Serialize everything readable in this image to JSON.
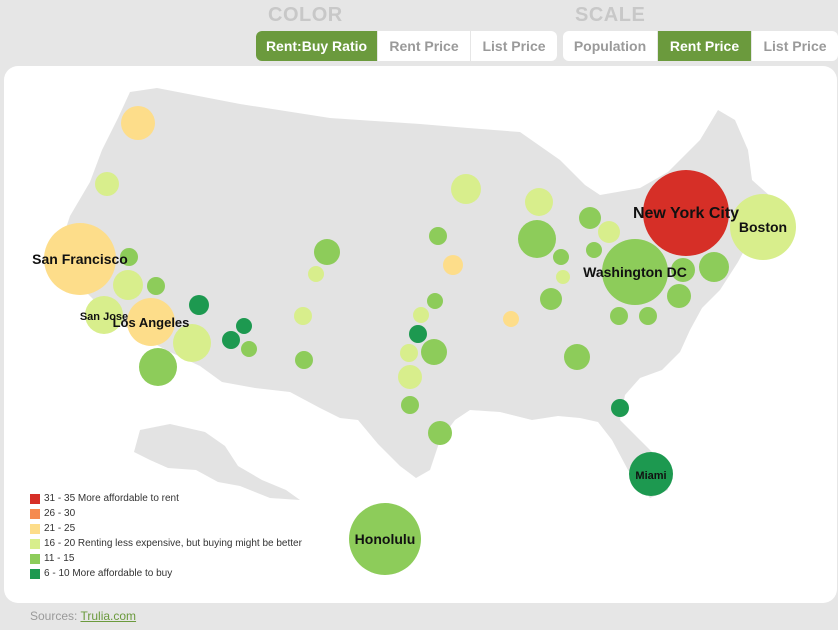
{
  "color": {
    "title": "COLOR",
    "buttons": [
      "Rent:Buy Ratio",
      "Rent Price",
      "List Price"
    ],
    "active": 0
  },
  "scale": {
    "title": "SCALE",
    "buttons": [
      "Population",
      "Rent Price",
      "List Price"
    ],
    "active": 1
  },
  "palette": {
    "red": "#d62f27",
    "orange": "#f58a50",
    "yellow": "#fddd8a",
    "lightgreen": "#d8ee8c",
    "green": "#8dcc5a",
    "darkgreen": "#1d9950",
    "land": "#e3e3e3"
  },
  "legend": [
    {
      "label": "31 - 35 More affordable to rent",
      "color": "#d62f27"
    },
    {
      "label": "26 - 30",
      "color": "#f58a50"
    },
    {
      "label": "21 - 25",
      "color": "#fddd8a"
    },
    {
      "label": "16 - 20 Renting less expensive, but buying might be better",
      "color": "#d8ee8c"
    },
    {
      "label": "11 - 15",
      "color": "#8dcc5a"
    },
    {
      "label": "6 - 10 More affordable to buy",
      "color": "#1d9950"
    }
  ],
  "cities": [
    {
      "name": "New York City",
      "cls": "red"
    },
    {
      "name": "Boston",
      "cls": "lightgreen"
    },
    {
      "name": "Washington DC",
      "cls": "green"
    },
    {
      "name": "San Francisco",
      "cls": "yellow"
    },
    {
      "name": "San Jose",
      "cls": "lightgreen"
    },
    {
      "name": "Los Angeles",
      "cls": "yellow"
    },
    {
      "name": "Honolulu",
      "cls": "green"
    },
    {
      "name": "Miami",
      "cls": "darkgreen"
    }
  ],
  "source": {
    "prefix": "Sources: ",
    "link": "Trulia.com"
  }
}
